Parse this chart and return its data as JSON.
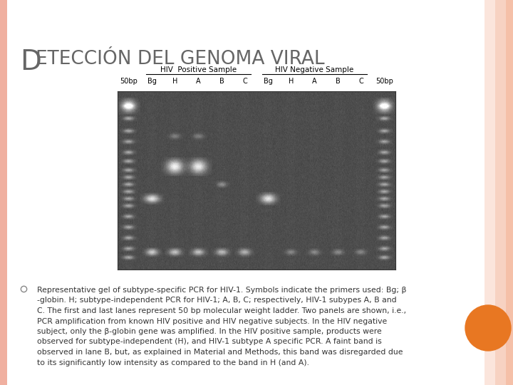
{
  "title_D": "D",
  "title_rest": "ETECCIÓN DEL GENOMA VIRAL",
  "bg_color": "#ffffff",
  "left_border_color": "#f0b8a0",
  "right_border_color": "#f5c0a8",
  "right_panel_color": "#fad4c0",
  "label_positive": "HIV  Positive Sample",
  "label_negative": "HIV Negative Sample",
  "lane_labels": [
    "50bp",
    "Bg",
    "H",
    "A",
    "B",
    "C",
    "Bg",
    "H",
    "A",
    "B",
    "C",
    "50bp"
  ],
  "bullet_symbol_color": "#888888",
  "bullet_text_lines": [
    "Representative gel of subtype-specific PCR for HIV-1. Symbols indicate the primers used: Bg; β",
    "-globin. H; subtype-independent PCR for HIV-1; A, B, C; respectively, HIV-1 subypes A, B and",
    "C. The first and last lanes represent 50 bp molecular weight ladder. Two panels are shown, i.e.,",
    "PCR amplification from known HIV positive and HIV negative subjects. In the HIV negative",
    "subject, only the β-globin gene was amplified. In the HIV positive sample, products were",
    "observed for subtype-independent (H), and HIV-1 subtype A specific PCR. A faint band is",
    "observed in lane B, but, as explained in Material and Methods, this band was disregarded due",
    "to its significantly low intensity as compared to the band in H (and A)."
  ],
  "orange_color": "#e87722",
  "title_color": "#666666",
  "text_color": "#333333"
}
